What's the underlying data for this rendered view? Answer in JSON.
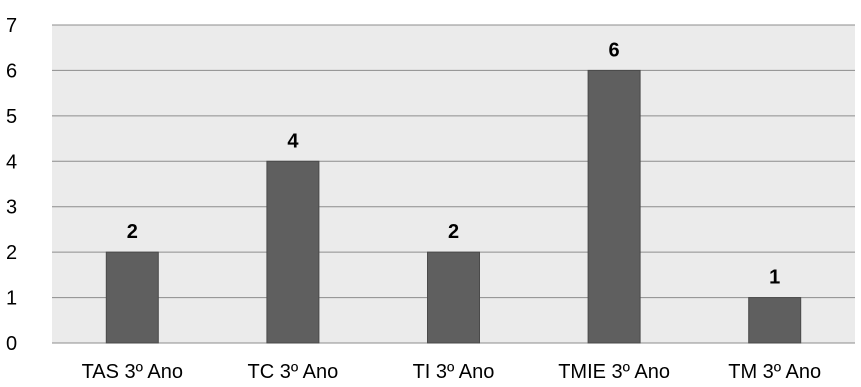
{
  "chart_data": {
    "type": "bar",
    "categories": [
      "TAS 3º Ano",
      "TC 3º Ano",
      "TI 3º Ano",
      "TMIE 3º Ano",
      "TM 3º Ano"
    ],
    "values": [
      2,
      4,
      2,
      6,
      1
    ],
    "data_labels": [
      "2",
      "4",
      "2",
      "6",
      "1"
    ],
    "yticks": [
      "0",
      "1",
      "2",
      "3",
      "4",
      "5",
      "6",
      "7"
    ],
    "ylim": [
      0,
      7
    ],
    "title": "",
    "xlabel": "",
    "ylabel": "",
    "grid": true,
    "legend": "none",
    "colors": {
      "bar": "#5f5f5f",
      "plot_background": "#ebebeb",
      "gridline": "#8c8c8c",
      "text": "#000000"
    }
  }
}
